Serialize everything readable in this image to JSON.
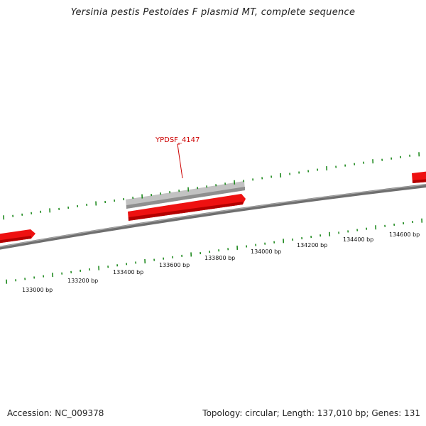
{
  "title": "Yersinia pestis Pestoides F plasmid MT, complete sequence",
  "accession": "Accession: NC_009378",
  "summary": "Topology: circular; Length: 137,010 bp; Genes: 131",
  "gene_label": "YPDSF_4147",
  "scale_labels": [
    "133000 bp",
    "133200 bp",
    "133400 bp",
    "133600 bp",
    "133800 bp",
    "134000 bp",
    "134200 bp",
    "134400 bp",
    "134600 bp"
  ],
  "colors": {
    "backbone": "#7a7a7a",
    "tick": "#1f8a1f",
    "gene_forward": "#ee1111",
    "gene_other": "#c0c0c0",
    "label": "#cc0000"
  }
}
